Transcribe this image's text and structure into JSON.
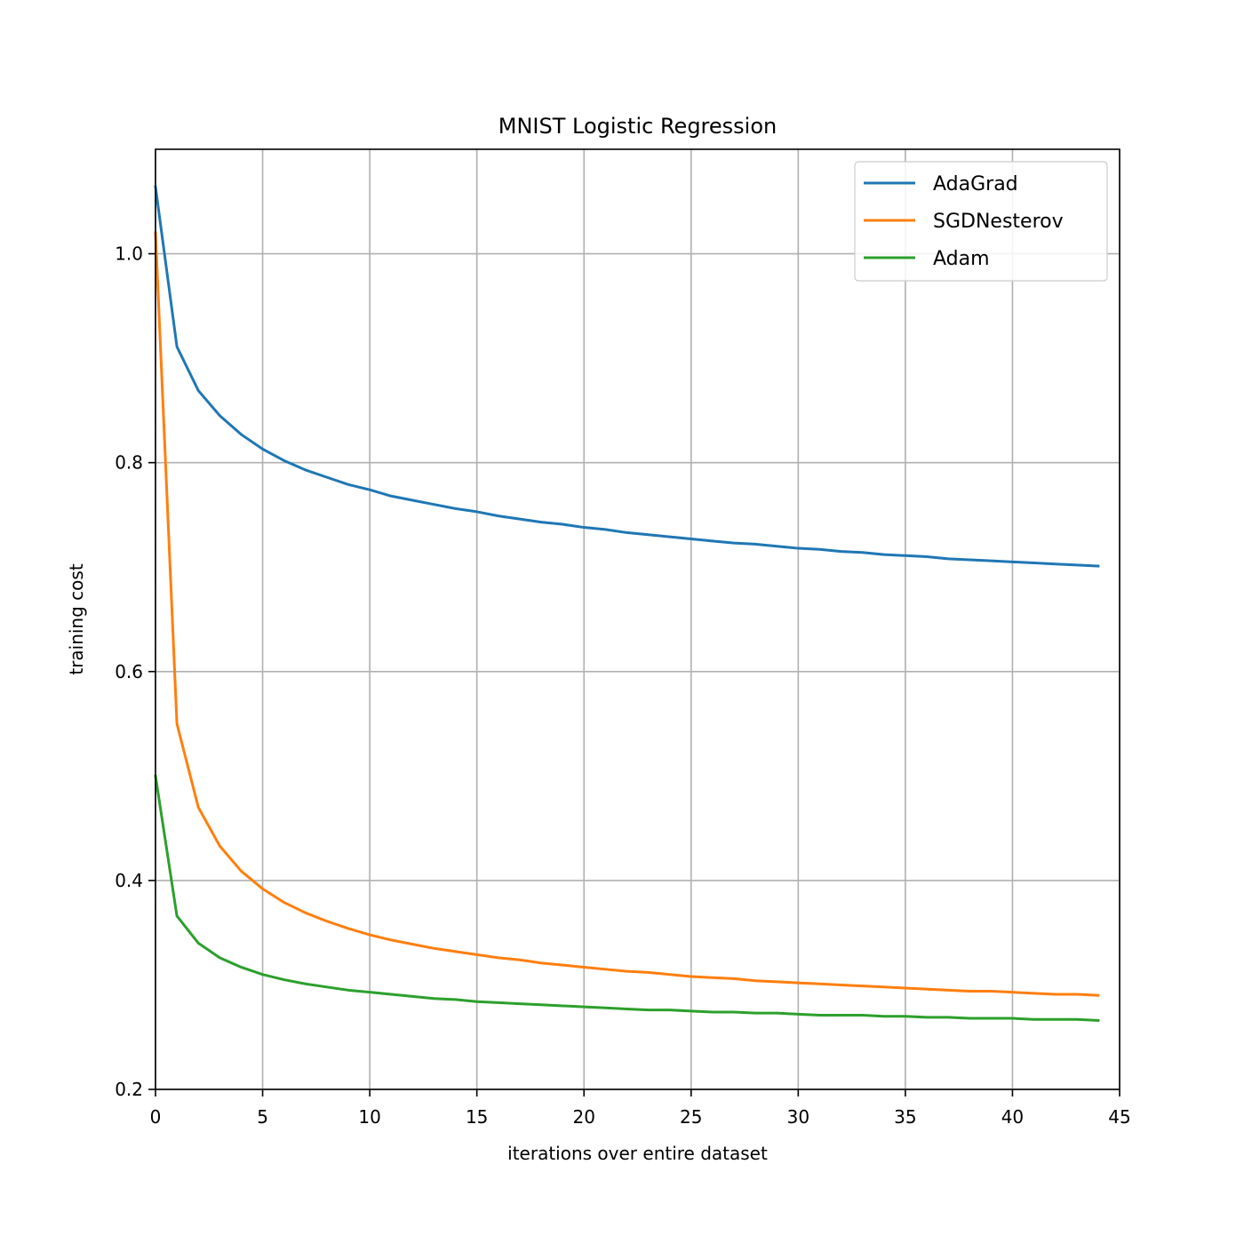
{
  "chart_data": {
    "type": "line",
    "title": "MNIST Logistic Regression",
    "xlabel": "iterations over entire dataset",
    "ylabel": "training cost",
    "xlim": [
      0,
      45
    ],
    "ylim": [
      0.2,
      1.1
    ],
    "xticks": [
      0,
      5,
      10,
      15,
      20,
      25,
      30,
      35,
      40,
      45
    ],
    "xtick_labels": [
      "0",
      "5",
      "10",
      "15",
      "20",
      "25",
      "30",
      "35",
      "40",
      "45"
    ],
    "yticks": [
      0.2,
      0.4,
      0.6,
      0.8,
      1.0
    ],
    "ytick_labels": [
      "0.2",
      "0.4",
      "0.6",
      "0.8",
      "1.0"
    ],
    "grid": true,
    "legend_position": "top-right",
    "x": [
      0,
      1,
      2,
      3,
      4,
      5,
      6,
      7,
      8,
      9,
      10,
      11,
      12,
      13,
      14,
      15,
      16,
      17,
      18,
      19,
      20,
      21,
      22,
      23,
      24,
      25,
      26,
      27,
      28,
      29,
      30,
      31,
      32,
      33,
      34,
      35,
      36,
      37,
      38,
      39,
      40,
      41,
      42,
      43,
      44
    ],
    "series": [
      {
        "name": "AdaGrad",
        "color": "#1f77b4",
        "values": [
          1.064,
          0.911,
          0.869,
          0.845,
          0.827,
          0.813,
          0.802,
          0.793,
          0.786,
          0.779,
          0.774,
          0.768,
          0.764,
          0.76,
          0.756,
          0.753,
          0.749,
          0.746,
          0.743,
          0.741,
          0.738,
          0.736,
          0.733,
          0.731,
          0.729,
          0.727,
          0.725,
          0.723,
          0.722,
          0.72,
          0.718,
          0.717,
          0.715,
          0.714,
          0.712,
          0.711,
          0.71,
          0.708,
          0.707,
          0.706,
          0.705,
          0.704,
          0.703,
          0.702,
          0.701
        ]
      },
      {
        "name": "SGDNesterov",
        "color": "#ff7f0e",
        "values": [
          1.02,
          0.55,
          0.47,
          0.433,
          0.409,
          0.392,
          0.379,
          0.369,
          0.361,
          0.354,
          0.348,
          0.343,
          0.339,
          0.335,
          0.332,
          0.329,
          0.326,
          0.324,
          0.321,
          0.319,
          0.317,
          0.315,
          0.313,
          0.312,
          0.31,
          0.308,
          0.307,
          0.306,
          0.304,
          0.303,
          0.302,
          0.301,
          0.3,
          0.299,
          0.298,
          0.297,
          0.296,
          0.295,
          0.294,
          0.294,
          0.293,
          0.292,
          0.291,
          0.291,
          0.29
        ]
      },
      {
        "name": "Adam",
        "color": "#2ca02c",
        "values": [
          0.5,
          0.366,
          0.34,
          0.326,
          0.317,
          0.31,
          0.305,
          0.301,
          0.298,
          0.295,
          0.293,
          0.291,
          0.289,
          0.287,
          0.286,
          0.284,
          0.283,
          0.282,
          0.281,
          0.28,
          0.279,
          0.278,
          0.277,
          0.276,
          0.276,
          0.275,
          0.274,
          0.274,
          0.273,
          0.273,
          0.272,
          0.271,
          0.271,
          0.271,
          0.27,
          0.27,
          0.269,
          0.269,
          0.268,
          0.268,
          0.268,
          0.267,
          0.267,
          0.267,
          0.266
        ]
      }
    ]
  }
}
